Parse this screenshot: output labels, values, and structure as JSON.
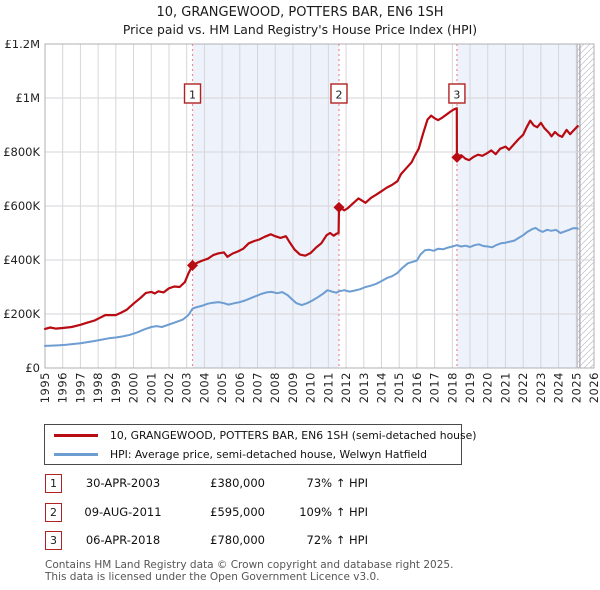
{
  "title": "10, GRANGEWOOD, POTTERS BAR, EN6 1SH",
  "subtitle": "Price paid vs. HM Land Registry's House Price Index (HPI)",
  "chart_data": {
    "type": "line",
    "title": "10, GRANGEWOOD, POTTERS BAR, EN6 1SH",
    "subtitle": "Price paid vs. HM Land Registry's House Price Index (HPI)",
    "x_axis": {
      "min": 1995,
      "max": 2026,
      "tick_years": [
        1995,
        1996,
        1997,
        1998,
        1999,
        2000,
        2001,
        2002,
        2003,
        2004,
        2005,
        2006,
        2007,
        2008,
        2009,
        2010,
        2011,
        2012,
        2013,
        2014,
        2015,
        2016,
        2017,
        2018,
        2019,
        2020,
        2021,
        2022,
        2023,
        2024,
        2025,
        2026
      ]
    },
    "y_axis": {
      "min_k": 0,
      "max_k": 1200,
      "grid": true,
      "ticks": [
        {
          "value_k": 0,
          "label": "£0"
        },
        {
          "value_k": 200,
          "label": "£200K"
        },
        {
          "value_k": 400,
          "label": "£400K"
        },
        {
          "value_k": 600,
          "label": "£600K"
        },
        {
          "value_k": 800,
          "label": "£800K"
        },
        {
          "value_k": 1000,
          "label": "£1M"
        },
        {
          "value_k": 1200,
          "label": "£1.2M"
        }
      ]
    },
    "series": [
      {
        "name": "10, GRANGEWOOD, POTTERS BAR, EN6 1SH (semi-detached house)",
        "color": "#b80b12",
        "width": 2.2,
        "points": [
          [
            1995.0,
            145
          ],
          [
            1995.3,
            150
          ],
          [
            1995.6,
            146
          ],
          [
            1996.0,
            148
          ],
          [
            1996.5,
            152
          ],
          [
            1997.0,
            160
          ],
          [
            1997.4,
            168
          ],
          [
            1997.8,
            176
          ],
          [
            1998.1,
            186
          ],
          [
            1998.4,
            196
          ],
          [
            1999.0,
            196
          ],
          [
            1999.3,
            205
          ],
          [
            1999.6,
            215
          ],
          [
            2000.0,
            238
          ],
          [
            2000.4,
            260
          ],
          [
            2000.7,
            278
          ],
          [
            2001.0,
            282
          ],
          [
            2001.2,
            276
          ],
          [
            2001.4,
            284
          ],
          [
            2001.7,
            280
          ],
          [
            2002.0,
            295
          ],
          [
            2002.3,
            302
          ],
          [
            2002.6,
            300
          ],
          [
            2002.9,
            318
          ],
          [
            2003.1,
            350
          ],
          [
            2003.33,
            380
          ],
          [
            2003.6,
            390
          ],
          [
            2003.9,
            398
          ],
          [
            2004.2,
            405
          ],
          [
            2004.5,
            418
          ],
          [
            2004.8,
            425
          ],
          [
            2005.1,
            428
          ],
          [
            2005.3,
            412
          ],
          [
            2005.6,
            424
          ],
          [
            2005.9,
            432
          ],
          [
            2006.2,
            442
          ],
          [
            2006.5,
            462
          ],
          [
            2006.8,
            470
          ],
          [
            2007.1,
            476
          ],
          [
            2007.4,
            486
          ],
          [
            2007.75,
            495
          ],
          [
            2008.0,
            488
          ],
          [
            2008.3,
            482
          ],
          [
            2008.6,
            488
          ],
          [
            2008.85,
            462
          ],
          [
            2009.1,
            438
          ],
          [
            2009.4,
            420
          ],
          [
            2009.7,
            416
          ],
          [
            2010.0,
            426
          ],
          [
            2010.3,
            446
          ],
          [
            2010.6,
            462
          ],
          [
            2010.9,
            492
          ],
          [
            2011.1,
            500
          ],
          [
            2011.3,
            490
          ],
          [
            2011.45,
            497
          ],
          [
            2011.58,
            500
          ],
          [
            2011.6,
            595
          ],
          [
            2011.75,
            590
          ],
          [
            2011.9,
            584
          ],
          [
            2012.1,
            592
          ],
          [
            2012.4,
            610
          ],
          [
            2012.7,
            628
          ],
          [
            2012.9,
            620
          ],
          [
            2013.1,
            612
          ],
          [
            2013.4,
            630
          ],
          [
            2013.7,
            642
          ],
          [
            2014.0,
            655
          ],
          [
            2014.3,
            668
          ],
          [
            2014.6,
            678
          ],
          [
            2014.9,
            692
          ],
          [
            2015.1,
            718
          ],
          [
            2015.4,
            740
          ],
          [
            2015.7,
            762
          ],
          [
            2015.9,
            788
          ],
          [
            2016.1,
            812
          ],
          [
            2016.35,
            868
          ],
          [
            2016.6,
            920
          ],
          [
            2016.8,
            935
          ],
          [
            2017.0,
            925
          ],
          [
            2017.2,
            918
          ],
          [
            2017.45,
            928
          ],
          [
            2017.7,
            940
          ],
          [
            2017.9,
            950
          ],
          [
            2018.1,
            958
          ],
          [
            2018.25,
            962
          ],
          [
            2018.26,
            780
          ],
          [
            2018.5,
            788
          ],
          [
            2018.75,
            775
          ],
          [
            2018.95,
            770
          ],
          [
            2019.2,
            782
          ],
          [
            2019.45,
            790
          ],
          [
            2019.7,
            786
          ],
          [
            2019.95,
            795
          ],
          [
            2020.2,
            806
          ],
          [
            2020.45,
            792
          ],
          [
            2020.7,
            812
          ],
          [
            2021.0,
            820
          ],
          [
            2021.2,
            808
          ],
          [
            2021.5,
            830
          ],
          [
            2021.75,
            848
          ],
          [
            2022.0,
            864
          ],
          [
            2022.2,
            892
          ],
          [
            2022.4,
            916
          ],
          [
            2022.6,
            898
          ],
          [
            2022.8,
            892
          ],
          [
            2023.0,
            908
          ],
          [
            2023.2,
            888
          ],
          [
            2023.45,
            872
          ],
          [
            2023.6,
            858
          ],
          [
            2023.8,
            874
          ],
          [
            2024.0,
            862
          ],
          [
            2024.2,
            856
          ],
          [
            2024.45,
            882
          ],
          [
            2024.65,
            866
          ],
          [
            2024.85,
            880
          ],
          [
            2025.08,
            896
          ]
        ]
      },
      {
        "name": "HPI: Average price, semi-detached house, Welwyn Hatfield",
        "color": "#6d9dd1",
        "width": 2,
        "points": [
          [
            1995.0,
            82
          ],
          [
            1995.4,
            83
          ],
          [
            1995.8,
            84
          ],
          [
            1996.2,
            86
          ],
          [
            1996.6,
            89
          ],
          [
            1997.0,
            92
          ],
          [
            1997.4,
            96
          ],
          [
            1997.8,
            100
          ],
          [
            1998.2,
            105
          ],
          [
            1998.6,
            110
          ],
          [
            1999.0,
            113
          ],
          [
            1999.4,
            117
          ],
          [
            1999.8,
            123
          ],
          [
            2000.2,
            132
          ],
          [
            2000.6,
            143
          ],
          [
            2001.0,
            152
          ],
          [
            2001.3,
            155
          ],
          [
            2001.6,
            152
          ],
          [
            2002.0,
            161
          ],
          [
            2002.4,
            170
          ],
          [
            2002.8,
            180
          ],
          [
            2003.1,
            196
          ],
          [
            2003.33,
            220
          ],
          [
            2003.6,
            226
          ],
          [
            2003.9,
            231
          ],
          [
            2004.2,
            238
          ],
          [
            2004.5,
            242
          ],
          [
            2004.8,
            244
          ],
          [
            2005.1,
            240
          ],
          [
            2005.35,
            235
          ],
          [
            2005.7,
            240
          ],
          [
            2006.0,
            244
          ],
          [
            2006.3,
            250
          ],
          [
            2006.6,
            258
          ],
          [
            2006.9,
            266
          ],
          [
            2007.2,
            274
          ],
          [
            2007.5,
            280
          ],
          [
            2007.8,
            282
          ],
          [
            2008.1,
            277
          ],
          [
            2008.4,
            281
          ],
          [
            2008.7,
            270
          ],
          [
            2008.95,
            254
          ],
          [
            2009.2,
            240
          ],
          [
            2009.5,
            233
          ],
          [
            2009.8,
            240
          ],
          [
            2010.1,
            250
          ],
          [
            2010.4,
            262
          ],
          [
            2010.7,
            275
          ],
          [
            2010.95,
            288
          ],
          [
            2011.2,
            283
          ],
          [
            2011.45,
            279
          ],
          [
            2011.6,
            284
          ],
          [
            2011.9,
            288
          ],
          [
            2012.2,
            283
          ],
          [
            2012.5,
            287
          ],
          [
            2012.8,
            292
          ],
          [
            2013.1,
            300
          ],
          [
            2013.4,
            305
          ],
          [
            2013.7,
            312
          ],
          [
            2014.0,
            322
          ],
          [
            2014.3,
            333
          ],
          [
            2014.6,
            340
          ],
          [
            2014.9,
            352
          ],
          [
            2015.2,
            372
          ],
          [
            2015.5,
            388
          ],
          [
            2015.75,
            393
          ],
          [
            2016.0,
            398
          ],
          [
            2016.2,
            420
          ],
          [
            2016.45,
            436
          ],
          [
            2016.7,
            438
          ],
          [
            2016.95,
            434
          ],
          [
            2017.2,
            442
          ],
          [
            2017.5,
            440
          ],
          [
            2017.75,
            446
          ],
          [
            2018.0,
            450
          ],
          [
            2018.26,
            455
          ],
          [
            2018.5,
            450
          ],
          [
            2018.75,
            453
          ],
          [
            2019.0,
            448
          ],
          [
            2019.25,
            455
          ],
          [
            2019.5,
            458
          ],
          [
            2019.75,
            452
          ],
          [
            2020.0,
            450
          ],
          [
            2020.25,
            447
          ],
          [
            2020.5,
            456
          ],
          [
            2020.75,
            462
          ],
          [
            2021.0,
            464
          ],
          [
            2021.25,
            468
          ],
          [
            2021.5,
            472
          ],
          [
            2021.75,
            482
          ],
          [
            2022.0,
            492
          ],
          [
            2022.25,
            505
          ],
          [
            2022.5,
            514
          ],
          [
            2022.7,
            519
          ],
          [
            2022.9,
            510
          ],
          [
            2023.1,
            504
          ],
          [
            2023.35,
            512
          ],
          [
            2023.6,
            508
          ],
          [
            2023.85,
            512
          ],
          [
            2024.1,
            500
          ],
          [
            2024.35,
            506
          ],
          [
            2024.6,
            512
          ],
          [
            2024.85,
            518
          ],
          [
            2025.08,
            517
          ]
        ]
      }
    ],
    "sales": [
      {
        "n": "1",
        "date": "30-APR-2003",
        "price": "£380,000",
        "hpi_change": "73% ↑ HPI",
        "year": 2003.33,
        "value_k": 380
      },
      {
        "n": "2",
        "date": "09-AUG-2011",
        "price": "£595,000",
        "hpi_change": "109% ↑ HPI",
        "year": 2011.6,
        "value_k": 595
      },
      {
        "n": "3",
        "date": "06-APR-2018",
        "price": "£780,000",
        "hpi_change": "72% ↑ HPI",
        "year": 2018.26,
        "value_k": 780
      }
    ],
    "shaded_bands": [
      [
        2003.33,
        2011.6
      ],
      [
        2018.26,
        2025.08
      ]
    ],
    "hatch_band": [
      2025.08,
      2026
    ],
    "legend_position": "bottom",
    "colors": {
      "property_line": "#b80b12",
      "hpi_line": "#6d9dd1",
      "band_fill": "#edf2fb",
      "grid": "#d6d6da",
      "plot_border": "#b0b0b6",
      "sale_dashed_line": "#f08b8b",
      "sale_box_border": "#b22222",
      "hatch_line": "#c9c9d2",
      "hatch_edge": "#a6a6ae",
      "axis_text": "#222222"
    }
  },
  "footer": {
    "line1": "Contains HM Land Registry data © Crown copyright and database right 2025.",
    "line2": "This data is licensed under the Open Government Licence v3.0."
  }
}
